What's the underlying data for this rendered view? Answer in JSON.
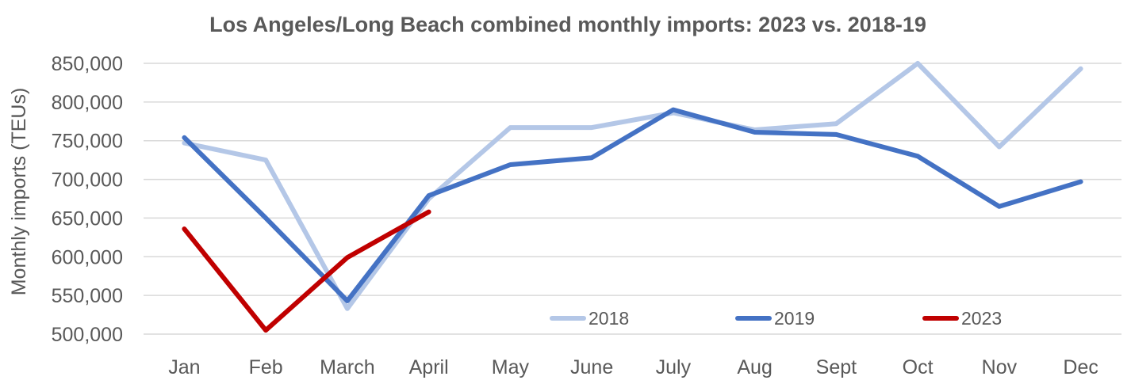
{
  "chart_data": {
    "type": "line",
    "title": "Los Angeles/Long Beach combined monthly imports: 2023 vs. 2018-19",
    "xlabel": "",
    "ylabel": "Monthly imports (TEUs)",
    "categories": [
      "Jan",
      "Feb",
      "March",
      "April",
      "May",
      "June",
      "July",
      "Aug",
      "Sept",
      "Oct",
      "Nov",
      "Dec"
    ],
    "ylim": [
      500000,
      850000
    ],
    "yticks": [
      500000,
      550000,
      600000,
      650000,
      700000,
      750000,
      800000,
      850000
    ],
    "ytick_labels": [
      "500,000",
      "550,000",
      "600,000",
      "650,000",
      "700,000",
      "750,000",
      "800,000",
      "850,000"
    ],
    "grid": true,
    "legend_position": "bottom-inside",
    "series": [
      {
        "name": "2018",
        "color": "#b4c7e7",
        "values": [
          747000,
          725000,
          533000,
          675000,
          767000,
          767000,
          786000,
          764000,
          772000,
          850000,
          742000,
          843000
        ]
      },
      {
        "name": "2019",
        "color": "#4472c4",
        "values": [
          754000,
          650000,
          543000,
          679000,
          719000,
          728000,
          790000,
          761000,
          758000,
          730000,
          665000,
          697000
        ]
      },
      {
        "name": "2023",
        "color": "#c00000",
        "values": [
          636000,
          505000,
          599000,
          658000,
          null,
          null,
          null,
          null,
          null,
          null,
          null,
          null
        ]
      }
    ]
  }
}
